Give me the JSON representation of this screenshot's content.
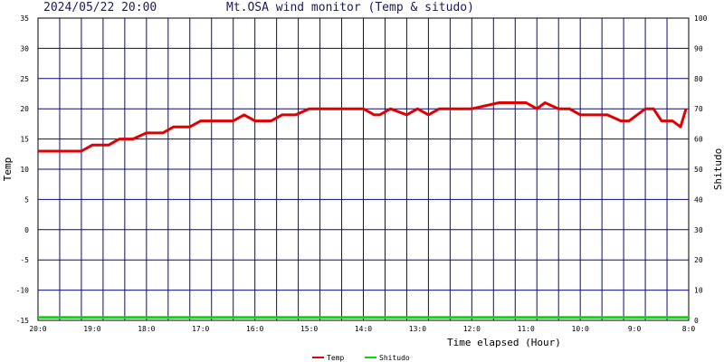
{
  "header": {
    "datetime": "2024/05/22 20:00",
    "title": "Mt.OSA wind monitor (Temp & situdo)"
  },
  "colors": {
    "grid": "#0a0a80",
    "temp": "#e00000",
    "shitudo": "#00e000",
    "text": "#1a1a5a"
  },
  "chart_data": {
    "type": "line",
    "title": "Mt.OSA wind monitor (Temp & situdo)",
    "xlabel": "Time elapsed (Hour)",
    "ylabel_left": "Temp",
    "ylabel_right": "Shitudo",
    "ylim_left": [
      -15,
      35
    ],
    "ylim_right": [
      0,
      100
    ],
    "grid": true,
    "legend_position": "bottom-center",
    "x_tick_labels": [
      "20:0",
      "19:0",
      "18:0",
      "17:0",
      "16:0",
      "15:0",
      "14:0",
      "13:0",
      "12:0",
      "11:0",
      "10:0",
      "9:0",
      "8:0"
    ],
    "y_left_ticks": [
      "35",
      "30",
      "25",
      "20",
      "15",
      "10",
      "5",
      "0",
      "-5",
      "-10",
      "-15"
    ],
    "y_right_ticks": [
      "100",
      "90",
      "80",
      "70",
      "60",
      "50",
      "40",
      "30",
      "20",
      "10",
      "0"
    ],
    "series": [
      {
        "name": "Temp",
        "axis": "left",
        "x": [
          0,
          0.8,
          1.0,
          1.3,
          1.5,
          1.75,
          2.0,
          2.3,
          2.5,
          2.8,
          3.0,
          3.35,
          3.6,
          3.8,
          4.0,
          4.3,
          4.5,
          4.75,
          5.0,
          5.3,
          5.5,
          5.75,
          6.0,
          6.2,
          6.3,
          6.5,
          6.8,
          7.0,
          7.2,
          7.4,
          7.8,
          8.0,
          8.5,
          8.9,
          9.0,
          9.2,
          9.35,
          9.6,
          9.8,
          10.0,
          10.5,
          10.75,
          10.9,
          11.2,
          11.35,
          11.5,
          11.7,
          11.85,
          11.95
        ],
        "values": [
          13,
          13,
          14,
          14,
          15,
          15,
          16,
          16,
          17,
          17,
          18,
          18,
          18,
          19,
          18,
          18,
          19,
          19,
          20,
          20,
          20,
          20,
          20,
          19,
          19,
          20,
          19,
          20,
          19,
          20,
          20,
          20,
          21,
          21,
          21,
          20,
          21,
          20,
          20,
          19,
          19,
          18,
          18,
          20,
          20,
          18,
          18,
          17,
          20
        ],
        "color": "#e00000"
      },
      {
        "name": "Shitudo",
        "axis": "right",
        "x": [
          0,
          12
        ],
        "values": [
          1,
          1
        ],
        "color": "#00e000"
      }
    ]
  }
}
